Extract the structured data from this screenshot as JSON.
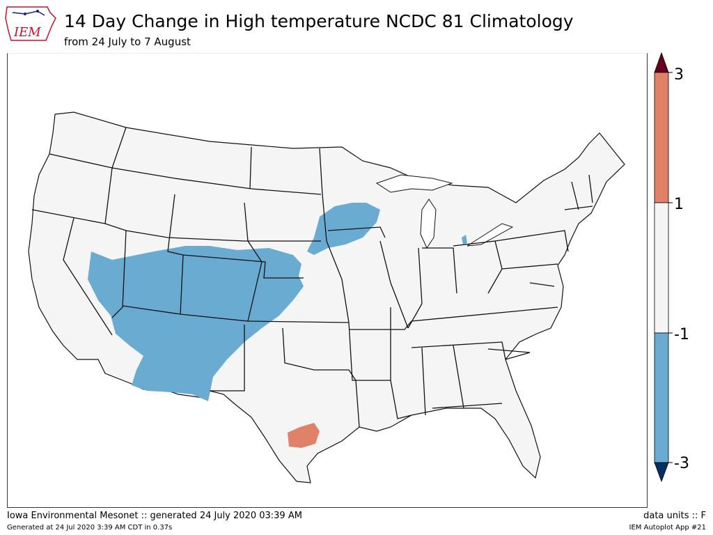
{
  "header": {
    "logo_text": "IEM",
    "title": "14 Day Change in High temperature NCDC 81 Climatology",
    "subtitle": "from 24 July to 7 August"
  },
  "legend": {
    "ticks": [
      "3",
      "1",
      "-1",
      "-3"
    ],
    "colors": {
      "extend_high": "#67001f",
      "warm": "#e08268",
      "neutral": "#f5f5f5",
      "cool": "#6aabd2",
      "extend_low": "#053061"
    }
  },
  "footer": {
    "source": "Iowa Environmental Mesonet :: generated 24 July 2020 03:39 AM",
    "units": "data units :: F",
    "generated": "Generated at 24 Jul 2020 3:39 AM CDT in 0.37s",
    "app": "IEM Autoplot App #21"
  }
}
